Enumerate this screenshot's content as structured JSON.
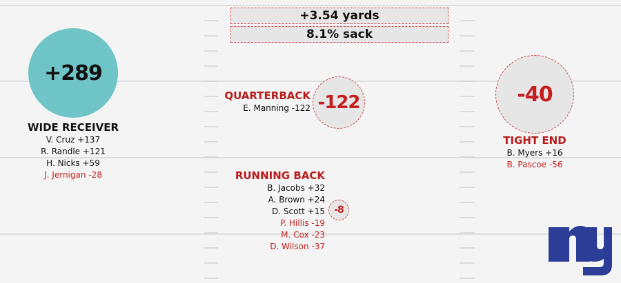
{
  "stats": {
    "yards": "+3.54 yards",
    "sack": "8.1% sack"
  },
  "wide_receiver": {
    "total": "+289",
    "title": "WIDE RECEIVER",
    "players": [
      "V. Cruz +137",
      "R. Randle +121",
      "H. Nicks +59",
      "J. Jernigan -28"
    ]
  },
  "quarterback": {
    "total": "-122",
    "title": "QUARTERBACK",
    "players": [
      "E. Manning -122"
    ]
  },
  "running_back": {
    "total": "-8",
    "title": "RUNNING BACK",
    "players": [
      "B. Jacobs +32",
      "A. Brown +24",
      "D. Scott +15",
      "P. Hillis -19",
      "M. Cox -23",
      "D. Wilson -37"
    ]
  },
  "tight_end": {
    "total": "-40",
    "title": "TIGHT END",
    "players": [
      "B. Myers +16",
      "B. Pascoe -56"
    ]
  },
  "colors": {
    "positive": "#111111",
    "negative": "#c41e1e",
    "wr_circle": "#6fc4c8",
    "logo": "#2b3d96"
  },
  "logo": {
    "icon": "ny-logo-icon"
  }
}
